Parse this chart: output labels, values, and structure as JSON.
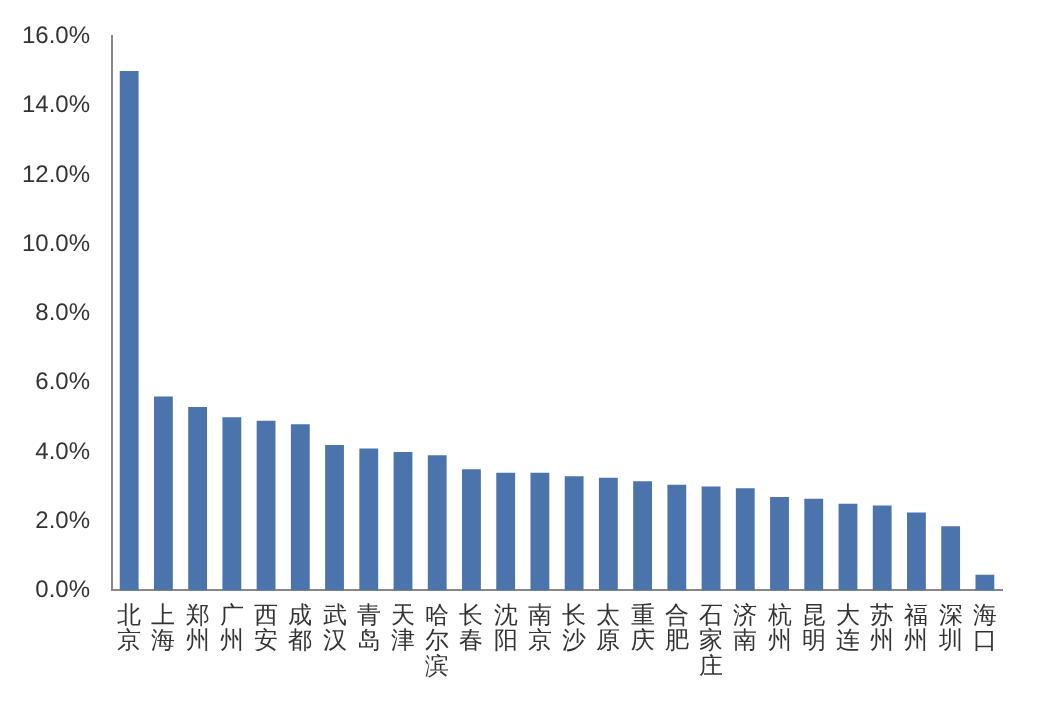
{
  "chart_data": {
    "type": "bar",
    "categories": [
      "北京",
      "上海",
      "郑州",
      "广州",
      "西安",
      "成都",
      "武汉",
      "青岛",
      "天津",
      "哈尔滨",
      "长春",
      "沈阳",
      "南京",
      "长沙",
      "太原",
      "重庆",
      "合肥",
      "石家庄",
      "济南",
      "杭州",
      "昆明",
      "大连",
      "苏州",
      "福州",
      "深圳",
      "海口"
    ],
    "values": [
      15.0,
      5.6,
      5.3,
      5.0,
      4.9,
      4.8,
      4.2,
      4.1,
      4.0,
      3.9,
      3.5,
      3.4,
      3.4,
      3.3,
      3.25,
      3.15,
      3.05,
      3.0,
      2.95,
      2.7,
      2.65,
      2.5,
      2.45,
      2.25,
      1.85,
      0.45
    ],
    "color": "#4a74ab",
    "ylim": [
      0,
      16
    ],
    "yticks": [
      {
        "value": 0,
        "label": "0.0%"
      },
      {
        "value": 2,
        "label": "2.0%"
      },
      {
        "value": 4,
        "label": "4.0%"
      },
      {
        "value": 6,
        "label": "6.0%"
      },
      {
        "value": 8,
        "label": "8.0%"
      },
      {
        "value": 10,
        "label": "10.0%"
      },
      {
        "value": 12,
        "label": "12.0%"
      },
      {
        "value": 14,
        "label": "14.0%"
      },
      {
        "value": 16,
        "label": "16.0%"
      }
    ],
    "grid": false,
    "legend": false
  }
}
